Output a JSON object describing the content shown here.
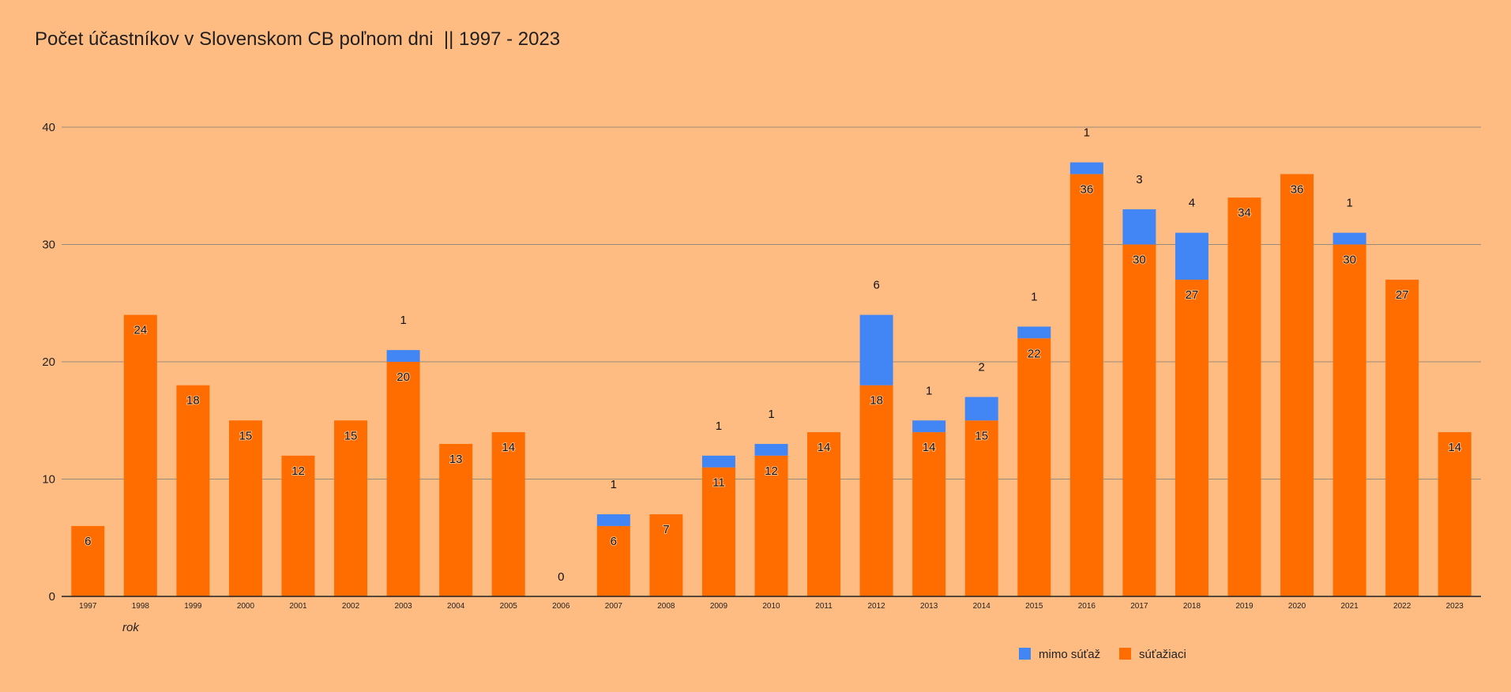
{
  "chart_data": {
    "type": "bar",
    "stacked": true,
    "title": "Počet účastníkov v Slovenskom CB poľnom dni  || 1997 - 2023",
    "xlabel": "rok",
    "ylabel": "",
    "ylim": [
      0,
      40
    ],
    "yticks": [
      "0",
      "10",
      "20",
      "30",
      "40"
    ],
    "grid": true,
    "legend_position": "bottom-right",
    "categories": [
      "1997",
      "1998",
      "1999",
      "2000",
      "2001",
      "2002",
      "2003",
      "2004",
      "2005",
      "2006",
      "2007",
      "2008",
      "2009",
      "2010",
      "2011",
      "2012",
      "2013",
      "2014",
      "2015",
      "2016",
      "2017",
      "2018",
      "2019",
      "2020",
      "2021",
      "2022",
      "2023"
    ],
    "series": [
      {
        "name": "súťažiaci",
        "color": "#FF6D01",
        "values": [
          6,
          24,
          18,
          15,
          12,
          15,
          20,
          13,
          14,
          0,
          6,
          7,
          11,
          12,
          14,
          18,
          14,
          15,
          22,
          36,
          30,
          27,
          34,
          36,
          30,
          27,
          14
        ],
        "labels": [
          "6",
          "24",
          "18",
          "15",
          "12",
          "15",
          "20",
          "13",
          "14",
          "0",
          "6",
          "7",
          "11",
          "12",
          "14",
          "18",
          "14",
          "15",
          "22",
          "36",
          "30",
          "27",
          "34",
          "36",
          "30",
          "27",
          "14"
        ]
      },
      {
        "name": "mimo súťaž",
        "color": "#4285F4",
        "values": [
          0,
          0,
          0,
          0,
          0,
          0,
          1,
          0,
          0,
          0,
          1,
          0,
          1,
          1,
          0,
          6,
          1,
          2,
          1,
          1,
          3,
          4,
          0,
          0,
          1,
          0,
          0
        ],
        "labels": [
          "",
          "",
          "",
          "",
          "",
          "",
          "1",
          "",
          "",
          "",
          "1",
          "",
          "1",
          "1",
          "",
          "6",
          "1",
          "2",
          "1",
          "1",
          "3",
          "4",
          "",
          "",
          "1",
          "",
          ""
        ]
      }
    ],
    "legend": [
      "mimo súťaž",
      "súťažiaci"
    ]
  }
}
